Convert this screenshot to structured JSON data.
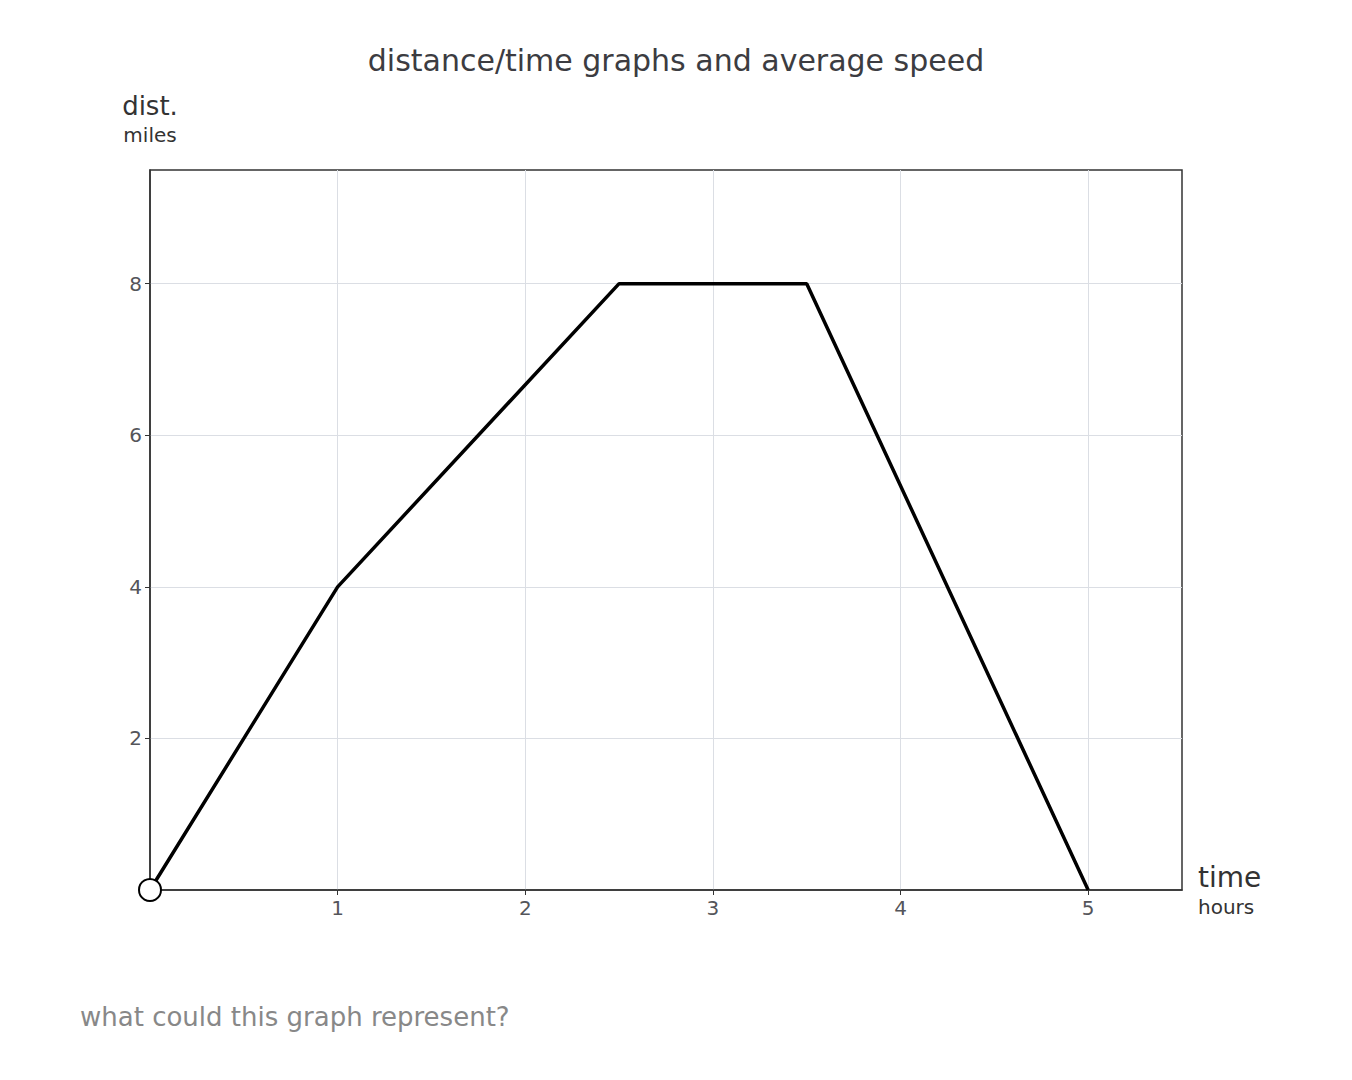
{
  "chart_data": {
    "type": "line",
    "title": "distance/time graphs and average speed",
    "x_label": "time",
    "x_unit": "hours",
    "y_label": "dist.",
    "y_unit": "miles",
    "footnote": "what could this graph represent?",
    "x": [
      0,
      1,
      2.5,
      3.5,
      5
    ],
    "values": [
      0,
      4,
      8,
      8,
      0
    ],
    "color": "#000000",
    "xlim": [
      0,
      5.5
    ],
    "xticks": [
      1,
      2,
      3,
      4,
      5
    ],
    "ylim": [
      0,
      9.5
    ],
    "yticks": [
      2,
      4,
      6,
      8
    ],
    "grid": true
  }
}
